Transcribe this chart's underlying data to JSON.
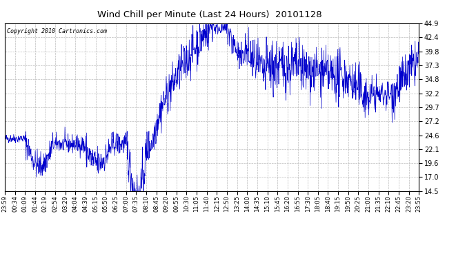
{
  "title": "Wind Chill per Minute (Last 24 Hours)  20101128",
  "copyright": "Copyright 2010 Cartronics.com",
  "line_color": "#0000CC",
  "bg_color": "#ffffff",
  "plot_bg_color": "#ffffff",
  "grid_color": "#bbbbbb",
  "ylim": [
    14.5,
    44.9
  ],
  "yticks": [
    14.5,
    17.0,
    19.6,
    22.1,
    24.6,
    27.2,
    29.7,
    32.2,
    34.8,
    37.3,
    39.8,
    42.4,
    44.9
  ],
  "xtick_labels": [
    "23:59",
    "00:34",
    "01:09",
    "01:44",
    "02:19",
    "02:54",
    "03:29",
    "04:04",
    "04:39",
    "05:15",
    "05:50",
    "06:25",
    "07:00",
    "07:35",
    "08:10",
    "08:45",
    "09:20",
    "09:55",
    "10:30",
    "11:05",
    "11:40",
    "12:15",
    "12:50",
    "13:25",
    "14:00",
    "14:35",
    "15:10",
    "15:45",
    "16:20",
    "16:55",
    "17:30",
    "18:05",
    "18:40",
    "19:15",
    "19:50",
    "20:25",
    "21:00",
    "21:35",
    "22:10",
    "22:45",
    "23:20",
    "23:55"
  ],
  "num_points": 1440
}
